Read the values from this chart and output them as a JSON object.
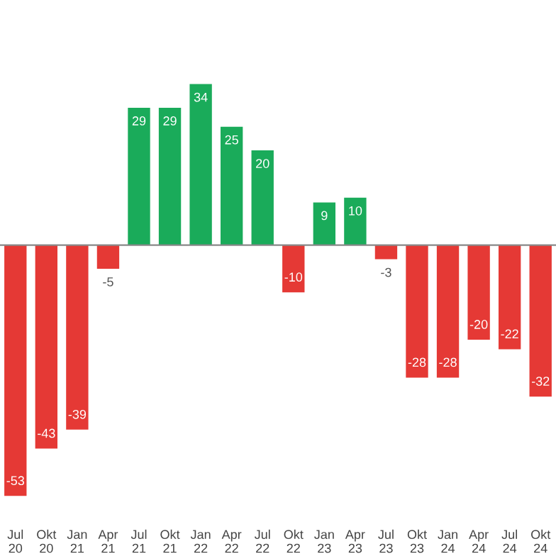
{
  "chart_data": {
    "type": "bar",
    "categories": [
      "Jul\n20",
      "Okt\n20",
      "Jan\n21",
      "Apr\n21",
      "Jul\n21",
      "Okt\n21",
      "Jan\n22",
      "Apr\n22",
      "Jul\n22",
      "Okt\n22",
      "Jan\n23",
      "Apr\n23",
      "Jul\n23",
      "Okt\n23",
      "Jan\n24",
      "Apr\n24",
      "Jul\n24",
      "Okt\n24"
    ],
    "values": [
      -53,
      -43,
      -39,
      -5,
      29,
      29,
      34,
      25,
      20,
      -10,
      9,
      10,
      -3,
      -28,
      -28,
      -20,
      -22,
      -32
    ],
    "colors": [
      "#e53935",
      "#e53935",
      "#e53935",
      "#e53935",
      "#1aab5a",
      "#1aab5a",
      "#1aab5a",
      "#1aab5a",
      "#1aab5a",
      "#e53935",
      "#1aab5a",
      "#1aab5a",
      "#e53935",
      "#e53935",
      "#e53935",
      "#e53935",
      "#e53935",
      "#e53935"
    ],
    "data_labels": true,
    "grid": false,
    "legend": false
  }
}
